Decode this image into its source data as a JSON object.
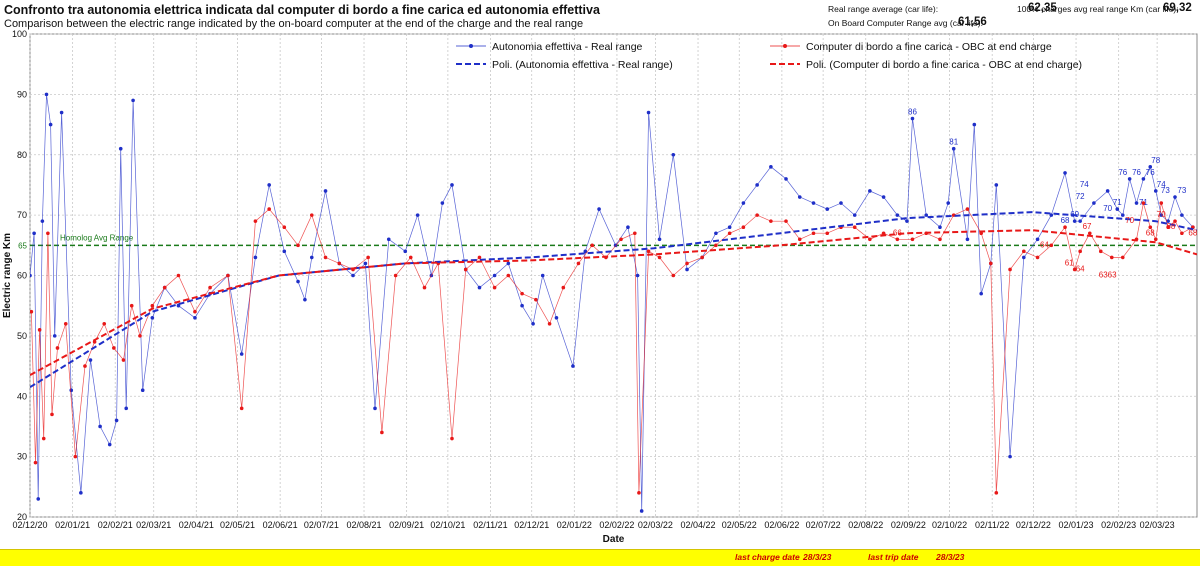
{
  "header": {
    "title": "Confronto tra autonomia elettrica indicata dal computer di bordo a fine carica ed autonomia effettiva",
    "subtitle": "Comparison between the electric range indicated by the on-board computer at the end of the charge and the real range"
  },
  "stats": {
    "real_avg_label": "Real range average (car life):",
    "real_avg_value": "62,35",
    "obc_avg_label": "On Board Computer Range avg (car life):",
    "obc_avg_value": "61,56",
    "full_charge_label": "100% charges avg real range Km (car life):",
    "full_charge_value": "69,32"
  },
  "footer": {
    "last_charge_label": "last charge date",
    "last_charge_value": "28/3/23",
    "last_trip_label": "last trip date",
    "last_trip_value": "28/3/23"
  },
  "colors": {
    "real": "#1f2fc8",
    "obc": "#e81818",
    "homolog": "#1a7a1a"
  },
  "chart_data": {
    "type": "line",
    "xlabel": "Date",
    "ylabel": "Electric range Km",
    "ylim": [
      20,
      100
    ],
    "yticks": [
      20,
      30,
      40,
      50,
      60,
      70,
      80,
      90,
      100
    ],
    "xlim": [
      "2020-12-02",
      "2023-03-31"
    ],
    "xticks": [
      "02/12/20",
      "02/01/21",
      "02/02/21",
      "02/03/21",
      "02/04/21",
      "02/05/21",
      "02/06/21",
      "02/07/21",
      "02/08/21",
      "02/09/21",
      "02/10/21",
      "02/11/21",
      "02/12/21",
      "02/01/22",
      "02/02/22",
      "02/03/22",
      "02/04/22",
      "02/05/22",
      "02/06/22",
      "02/07/22",
      "02/08/22",
      "02/09/22",
      "02/10/22",
      "02/11/22",
      "02/12/22",
      "02/01/23",
      "02/02/23",
      "02/03/23"
    ],
    "grid": true,
    "legend_position": "top",
    "homolog": {
      "label": "Homolog Avg Range",
      "value": 65,
      "value_label": "65"
    },
    "series": [
      {
        "name": "Autonomia effettiva - Real range",
        "style": "points",
        "x": [
          "2020-12-02",
          "2020-12-05",
          "2020-12-08",
          "2020-12-11",
          "2020-12-14",
          "2020-12-17",
          "2020-12-20",
          "2020-12-25",
          "2021-01-01",
          "2021-01-08",
          "2021-01-15",
          "2021-01-22",
          "2021-01-29",
          "2021-02-03",
          "2021-02-06",
          "2021-02-10",
          "2021-02-15",
          "2021-02-22",
          "2021-03-01",
          "2021-03-10",
          "2021-03-20",
          "2021-04-01",
          "2021-04-12",
          "2021-04-25",
          "2021-05-05",
          "2021-05-15",
          "2021-05-25",
          "2021-06-05",
          "2021-06-15",
          "2021-06-20",
          "2021-06-25",
          "2021-07-05",
          "2021-07-15",
          "2021-07-25",
          "2021-08-03",
          "2021-08-10",
          "2021-08-20",
          "2021-09-01",
          "2021-09-10",
          "2021-09-20",
          "2021-09-28",
          "2021-10-05",
          "2021-10-15",
          "2021-10-25",
          "2021-11-05",
          "2021-11-15",
          "2021-11-25",
          "2021-12-03",
          "2021-12-10",
          "2021-12-20",
          "2022-01-01",
          "2022-01-10",
          "2022-01-20",
          "2022-02-01",
          "2022-02-10",
          "2022-02-17",
          "2022-02-20",
          "2022-02-25",
          "2022-03-05",
          "2022-03-15",
          "2022-03-25",
          "2022-04-05",
          "2022-04-15",
          "2022-04-25",
          "2022-05-05",
          "2022-05-15",
          "2022-05-25",
          "2022-06-05",
          "2022-06-15",
          "2022-06-25",
          "2022-07-05",
          "2022-07-15",
          "2022-07-25",
          "2022-08-05",
          "2022-08-15",
          "2022-08-25",
          "2022-09-01",
          "2022-09-05",
          "2022-09-15",
          "2022-09-25",
          "2022-10-01",
          "2022-10-05",
          "2022-10-15",
          "2022-10-20",
          "2022-10-25",
          "2022-11-01",
          "2022-11-05",
          "2022-11-15",
          "2022-11-25",
          "2022-12-05",
          "2022-12-15",
          "2022-12-25",
          "2023-01-01",
          "2023-01-05",
          "2023-01-15",
          "2023-01-25",
          "2023-02-01",
          "2023-02-05",
          "2023-02-10",
          "2023-02-15",
          "2023-02-20",
          "2023-02-25",
          "2023-03-01",
          "2023-03-05",
          "2023-03-10",
          "2023-03-15",
          "2023-03-20",
          "2023-03-28"
        ],
        "y": [
          60,
          67,
          23,
          69,
          90,
          85,
          50,
          87,
          41,
          24,
          46,
          35,
          32,
          36,
          81,
          38,
          89,
          41,
          53,
          58,
          55,
          53,
          57,
          60,
          47,
          63,
          75,
          64,
          59,
          56,
          63,
          74,
          62,
          60,
          62,
          38,
          66,
          64,
          70,
          60,
          72,
          75,
          61,
          58,
          60,
          62,
          55,
          52,
          60,
          53,
          45,
          64,
          71,
          65,
          68,
          60,
          21,
          87,
          66,
          80,
          61,
          63,
          67,
          68,
          72,
          75,
          78,
          76,
          73,
          72,
          71,
          72,
          70,
          74,
          73,
          70,
          69,
          86,
          70,
          68,
          72,
          81,
          66,
          85,
          57,
          62,
          75,
          30,
          63,
          66,
          70,
          77,
          69,
          69,
          72,
          74,
          71,
          70,
          76,
          72,
          76,
          78,
          74,
          70,
          69,
          73,
          70,
          68
        ]
      },
      {
        "name": "Computer di bordo a fine carica - OBC at end charge",
        "style": "points",
        "x": [
          "2020-12-03",
          "2020-12-06",
          "2020-12-09",
          "2020-12-12",
          "2020-12-15",
          "2020-12-18",
          "2020-12-22",
          "2020-12-28",
          "2021-01-04",
          "2021-01-11",
          "2021-01-18",
          "2021-01-25",
          "2021-02-01",
          "2021-02-08",
          "2021-02-14",
          "2021-02-20",
          "2021-03-01",
          "2021-03-10",
          "2021-03-20",
          "2021-04-01",
          "2021-04-12",
          "2021-04-25",
          "2021-05-05",
          "2021-05-15",
          "2021-05-25",
          "2021-06-05",
          "2021-06-15",
          "2021-06-25",
          "2021-07-05",
          "2021-07-15",
          "2021-07-25",
          "2021-08-05",
          "2021-08-15",
          "2021-08-25",
          "2021-09-05",
          "2021-09-15",
          "2021-09-25",
          "2021-10-05",
          "2021-10-15",
          "2021-10-25",
          "2021-11-05",
          "2021-11-15",
          "2021-11-25",
          "2021-12-05",
          "2021-12-15",
          "2021-12-25",
          "2022-01-05",
          "2022-01-15",
          "2022-01-25",
          "2022-02-05",
          "2022-02-15",
          "2022-02-18",
          "2022-02-25",
          "2022-03-05",
          "2022-03-15",
          "2022-03-25",
          "2022-04-05",
          "2022-04-15",
          "2022-04-25",
          "2022-05-05",
          "2022-05-15",
          "2022-05-25",
          "2022-06-05",
          "2022-06-15",
          "2022-06-25",
          "2022-07-05",
          "2022-07-15",
          "2022-07-25",
          "2022-08-05",
          "2022-08-15",
          "2022-08-25",
          "2022-09-05",
          "2022-09-15",
          "2022-09-25",
          "2022-10-05",
          "2022-10-15",
          "2022-10-25",
          "2022-11-01",
          "2022-11-05",
          "2022-11-15",
          "2022-11-25",
          "2022-12-05",
          "2022-12-15",
          "2022-12-25",
          "2023-01-01",
          "2023-01-05",
          "2023-01-12",
          "2023-01-20",
          "2023-01-28",
          "2023-02-05",
          "2023-02-15",
          "2023-02-20",
          "2023-02-25",
          "2023-03-01",
          "2023-03-05",
          "2023-03-10",
          "2023-03-15",
          "2023-03-20",
          "2023-03-28"
        ],
        "y": [
          54,
          29,
          51,
          33,
          67,
          37,
          48,
          52,
          30,
          45,
          49,
          52,
          48,
          46,
          55,
          50,
          55,
          58,
          60,
          54,
          58,
          60,
          38,
          69,
          71,
          68,
          65,
          70,
          63,
          62,
          61,
          63,
          34,
          60,
          63,
          58,
          62,
          33,
          61,
          63,
          58,
          60,
          57,
          56,
          52,
          58,
          62,
          65,
          63,
          66,
          67,
          24,
          64,
          63,
          60,
          62,
          63,
          65,
          67,
          68,
          70,
          69,
          69,
          66,
          67,
          67,
          68,
          68,
          66,
          67,
          66,
          66,
          67,
          66,
          70,
          71,
          67,
          62,
          24,
          61,
          64,
          63,
          65,
          68,
          61,
          64,
          67,
          64,
          63,
          63,
          66,
          72,
          68,
          66,
          72,
          68,
          69,
          67,
          68
        ]
      },
      {
        "name": "Poli. (Autonomia effettiva - Real range)",
        "style": "dashed",
        "x": [
          "2020-12-02",
          "2021-03-01",
          "2021-06-01",
          "2021-09-01",
          "2021-12-01",
          "2022-03-01",
          "2022-06-01",
          "2022-09-01",
          "2022-12-01",
          "2023-03-01",
          "2023-03-31"
        ],
        "y": [
          41.5,
          54,
          60,
          62,
          63,
          64.5,
          67,
          69.5,
          70.5,
          69,
          67.5
        ]
      },
      {
        "name": "Poli. (Computer di bordo a fine carica - OBC at end charge)",
        "style": "dashed",
        "x": [
          "2020-12-02",
          "2021-03-01",
          "2021-06-01",
          "2021-09-01",
          "2021-12-01",
          "2022-03-01",
          "2022-06-01",
          "2022-09-01",
          "2022-12-01",
          "2023-03-01",
          "2023-03-31"
        ],
        "y": [
          43.5,
          54.5,
          60,
          62,
          62.5,
          63.5,
          65,
          67,
          67.5,
          65.5,
          63.5
        ]
      }
    ],
    "data_labels": [
      {
        "series": 0,
        "x": "2022-09-05",
        "y": 86,
        "text": "86"
      },
      {
        "series": 0,
        "x": "2022-10-05",
        "y": 81,
        "text": "81"
      },
      {
        "series": 0,
        "x": "2023-01-05",
        "y": 72,
        "text": "72"
      },
      {
        "series": 0,
        "x": "2023-01-08",
        "y": 74,
        "text": "74"
      },
      {
        "series": 0,
        "x": "2023-01-25",
        "y": 70,
        "text": "70"
      },
      {
        "series": 0,
        "x": "2023-02-01",
        "y": 71,
        "text": "71"
      },
      {
        "series": 0,
        "x": "2023-02-05",
        "y": 76,
        "text": "76"
      },
      {
        "series": 0,
        "x": "2023-02-15",
        "y": 76,
        "text": "76"
      },
      {
        "series": 0,
        "x": "2023-02-20",
        "y": 71,
        "text": "71"
      },
      {
        "series": 0,
        "x": "2023-02-25",
        "y": 76,
        "text": "76"
      },
      {
        "series": 0,
        "x": "2023-03-01",
        "y": 78,
        "text": "78"
      },
      {
        "series": 0,
        "x": "2023-03-05",
        "y": 74,
        "text": "74"
      },
      {
        "series": 0,
        "x": "2023-03-08",
        "y": 73,
        "text": "73"
      },
      {
        "series": 0,
        "x": "2023-03-20",
        "y": 73,
        "text": "73"
      },
      {
        "series": 0,
        "x": "2022-12-25",
        "y": 68,
        "text": "68"
      },
      {
        "series": 0,
        "x": "2023-01-01",
        "y": 69,
        "text": "69"
      },
      {
        "series": 1,
        "x": "2023-01-10",
        "y": 67,
        "text": "67"
      },
      {
        "series": 1,
        "x": "2022-08-25",
        "y": 66,
        "text": "66"
      },
      {
        "series": 1,
        "x": "2022-12-10",
        "y": 64,
        "text": "64"
      },
      {
        "series": 1,
        "x": "2022-12-28",
        "y": 61,
        "text": "61"
      },
      {
        "series": 1,
        "x": "2023-01-05",
        "y": 60,
        "text": "64"
      },
      {
        "series": 1,
        "x": "2023-01-25",
        "y": 59,
        "text": "6363"
      },
      {
        "series": 1,
        "x": "2023-02-10",
        "y": 68,
        "text": "70"
      },
      {
        "series": 1,
        "x": "2023-02-25",
        "y": 66,
        "text": "68"
      },
      {
        "series": 1,
        "x": "2023-03-05",
        "y": 69,
        "text": "70"
      },
      {
        "series": 1,
        "x": "2023-03-12",
        "y": 67,
        "text": "68"
      },
      {
        "series": 1,
        "x": "2023-03-28",
        "y": 66,
        "text": "68"
      }
    ]
  }
}
